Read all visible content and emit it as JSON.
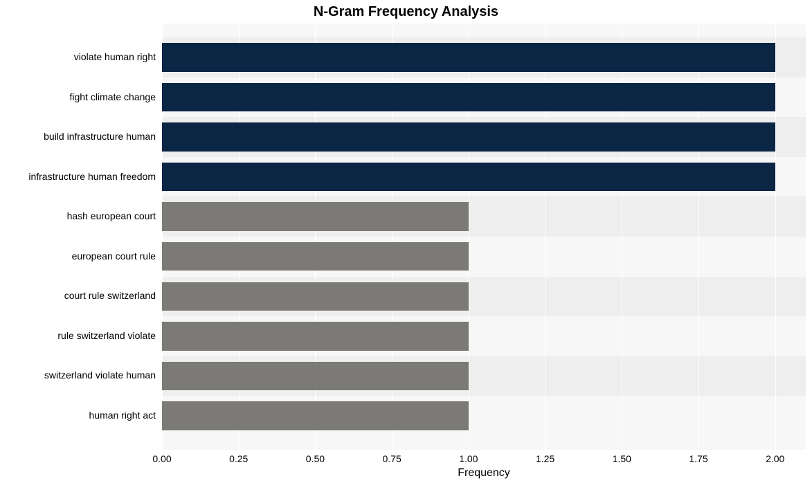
{
  "chart": {
    "type": "bar-horizontal",
    "title": "N-Gram Frequency Analysis",
    "title_fontsize": 20,
    "xaxis_label": "Frequency",
    "axis_label_fontsize": 16,
    "tick_fontsize": 14,
    "background_color": "#ffffff",
    "plot_bg_color": "#f7f7f7",
    "band_color": "#eeeeee",
    "grid_color": "#ffffff",
    "text_color": "#000000",
    "xlim": [
      0.0,
      2.1
    ],
    "xtick_step": 0.25,
    "xticks": [
      "0.00",
      "0.25",
      "0.50",
      "0.75",
      "1.00",
      "1.25",
      "1.50",
      "1.75",
      "2.00"
    ],
    "bar_width_ratio": 0.72,
    "categories": [
      "violate human right",
      "fight climate change",
      "build infrastructure human",
      "infrastructure human freedom",
      "hash european court",
      "european court rule",
      "court rule switzerland",
      "rule switzerland violate",
      "switzerland violate human",
      "human right act"
    ],
    "values": [
      2,
      2,
      2,
      2,
      1,
      1,
      1,
      1,
      1,
      1
    ],
    "bar_colors": [
      "#0b2545",
      "#0b2545",
      "#0b2545",
      "#0b2545",
      "#7c7a76",
      "#7c7a76",
      "#7c7a76",
      "#7c7a76",
      "#7c7a76",
      "#7c7a76"
    ]
  }
}
